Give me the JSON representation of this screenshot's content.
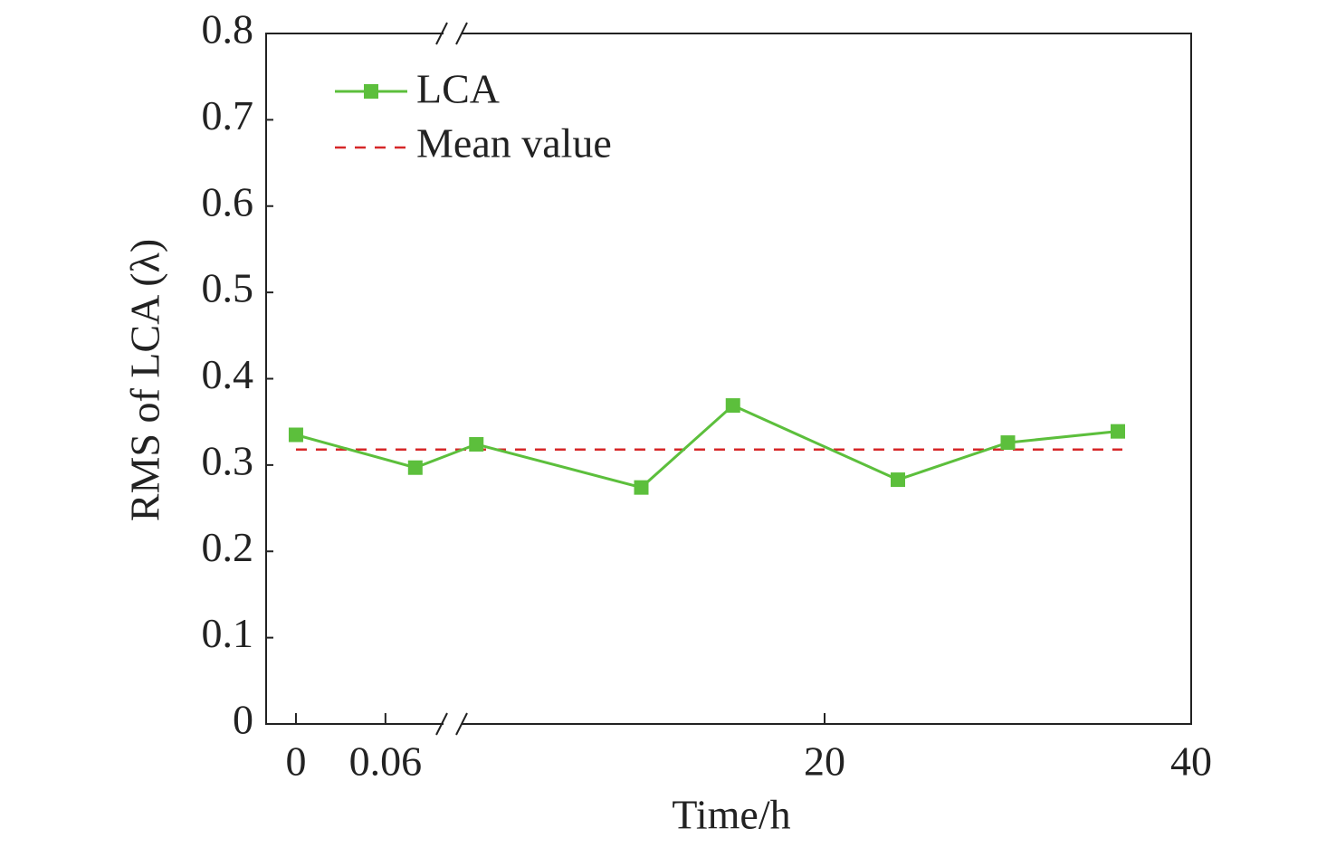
{
  "chart_data": {
    "type": "line",
    "xlabel": "Time/h",
    "ylabel": "RMS of LCA (λ)",
    "x_segments": [
      {
        "xlim": [
          -0.02,
          0.105
        ],
        "xticks": [
          0,
          0.06
        ]
      },
      {
        "xlim": [
          0,
          40
        ],
        "xticks": [
          20,
          40
        ]
      }
    ],
    "ylim": [
      0,
      0.8
    ],
    "yticks": [
      0,
      0.1,
      0.2,
      0.3,
      0.4,
      0.5,
      0.6,
      0.7,
      0.8
    ],
    "x": [
      0,
      0.08,
      1,
      10,
      15,
      24,
      30,
      36
    ],
    "series": [
      {
        "name": "LCA",
        "color": "#5cbf3c",
        "values": [
          0.335,
          0.297,
          0.324,
          0.274,
          0.369,
          0.283,
          0.326,
          0.339
        ]
      }
    ],
    "mean": {
      "name": "Mean value",
      "color": "#d62728",
      "value": 0.318
    },
    "legend": "upper left"
  }
}
